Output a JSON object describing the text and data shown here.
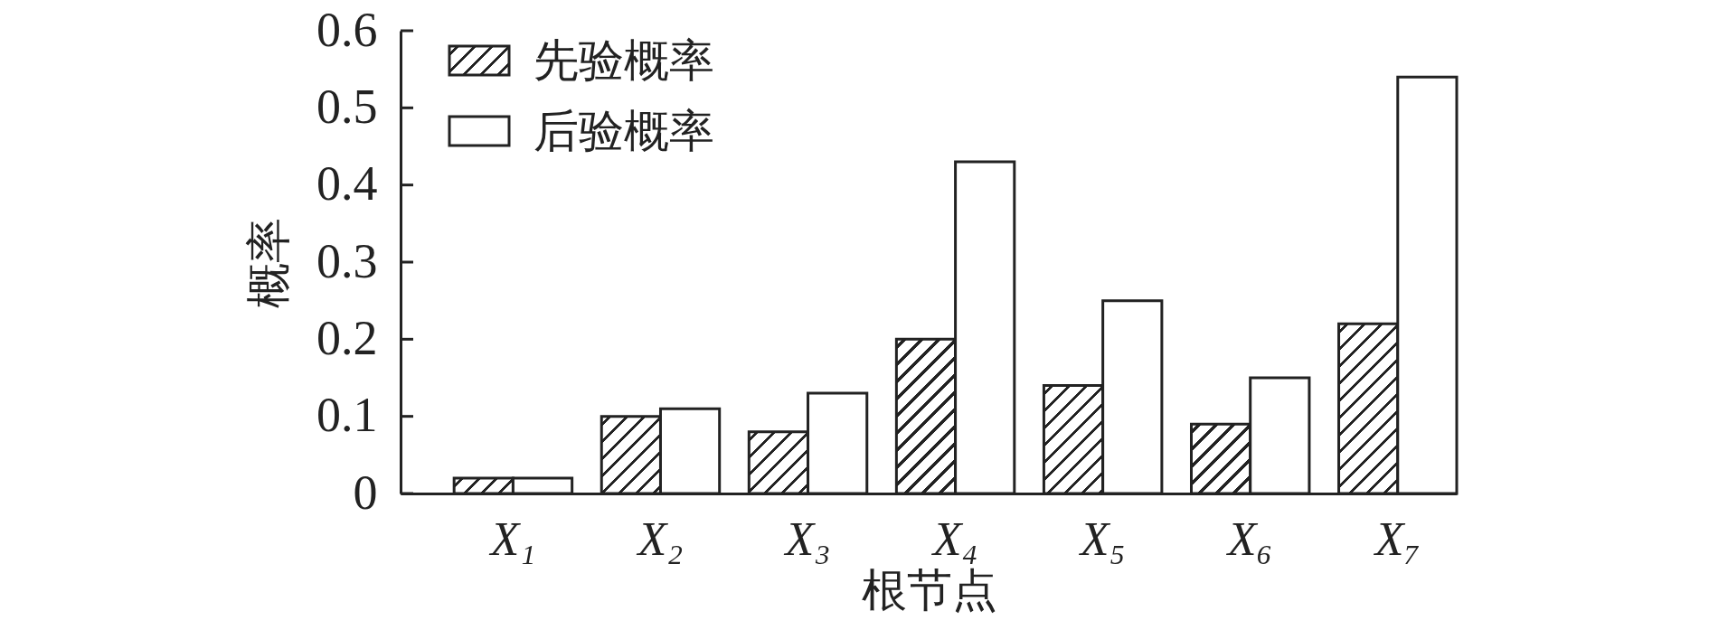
{
  "chart_data": {
    "type": "bar",
    "xlabel": "根节点",
    "ylabel": "概率",
    "categories": [
      "X₁",
      "X₂",
      "X₃",
      "X₄",
      "X₅",
      "X₆",
      "X₇"
    ],
    "series": [
      {
        "name": "先验概率",
        "color": "#222222",
        "values": [
          0.02,
          0.1,
          0.08,
          0.2,
          0.14,
          0.09,
          0.22
        ]
      },
      {
        "name": "后验概率",
        "color": "#ffffff",
        "values": [
          0.02,
          0.11,
          0.13,
          0.43,
          0.25,
          0.15,
          0.54
        ]
      }
    ],
    "ylim": [
      0,
      0.6
    ],
    "yticks": [
      0,
      0.1,
      0.2,
      0.3,
      0.4,
      0.5,
      0.6
    ],
    "legend": "top left"
  }
}
